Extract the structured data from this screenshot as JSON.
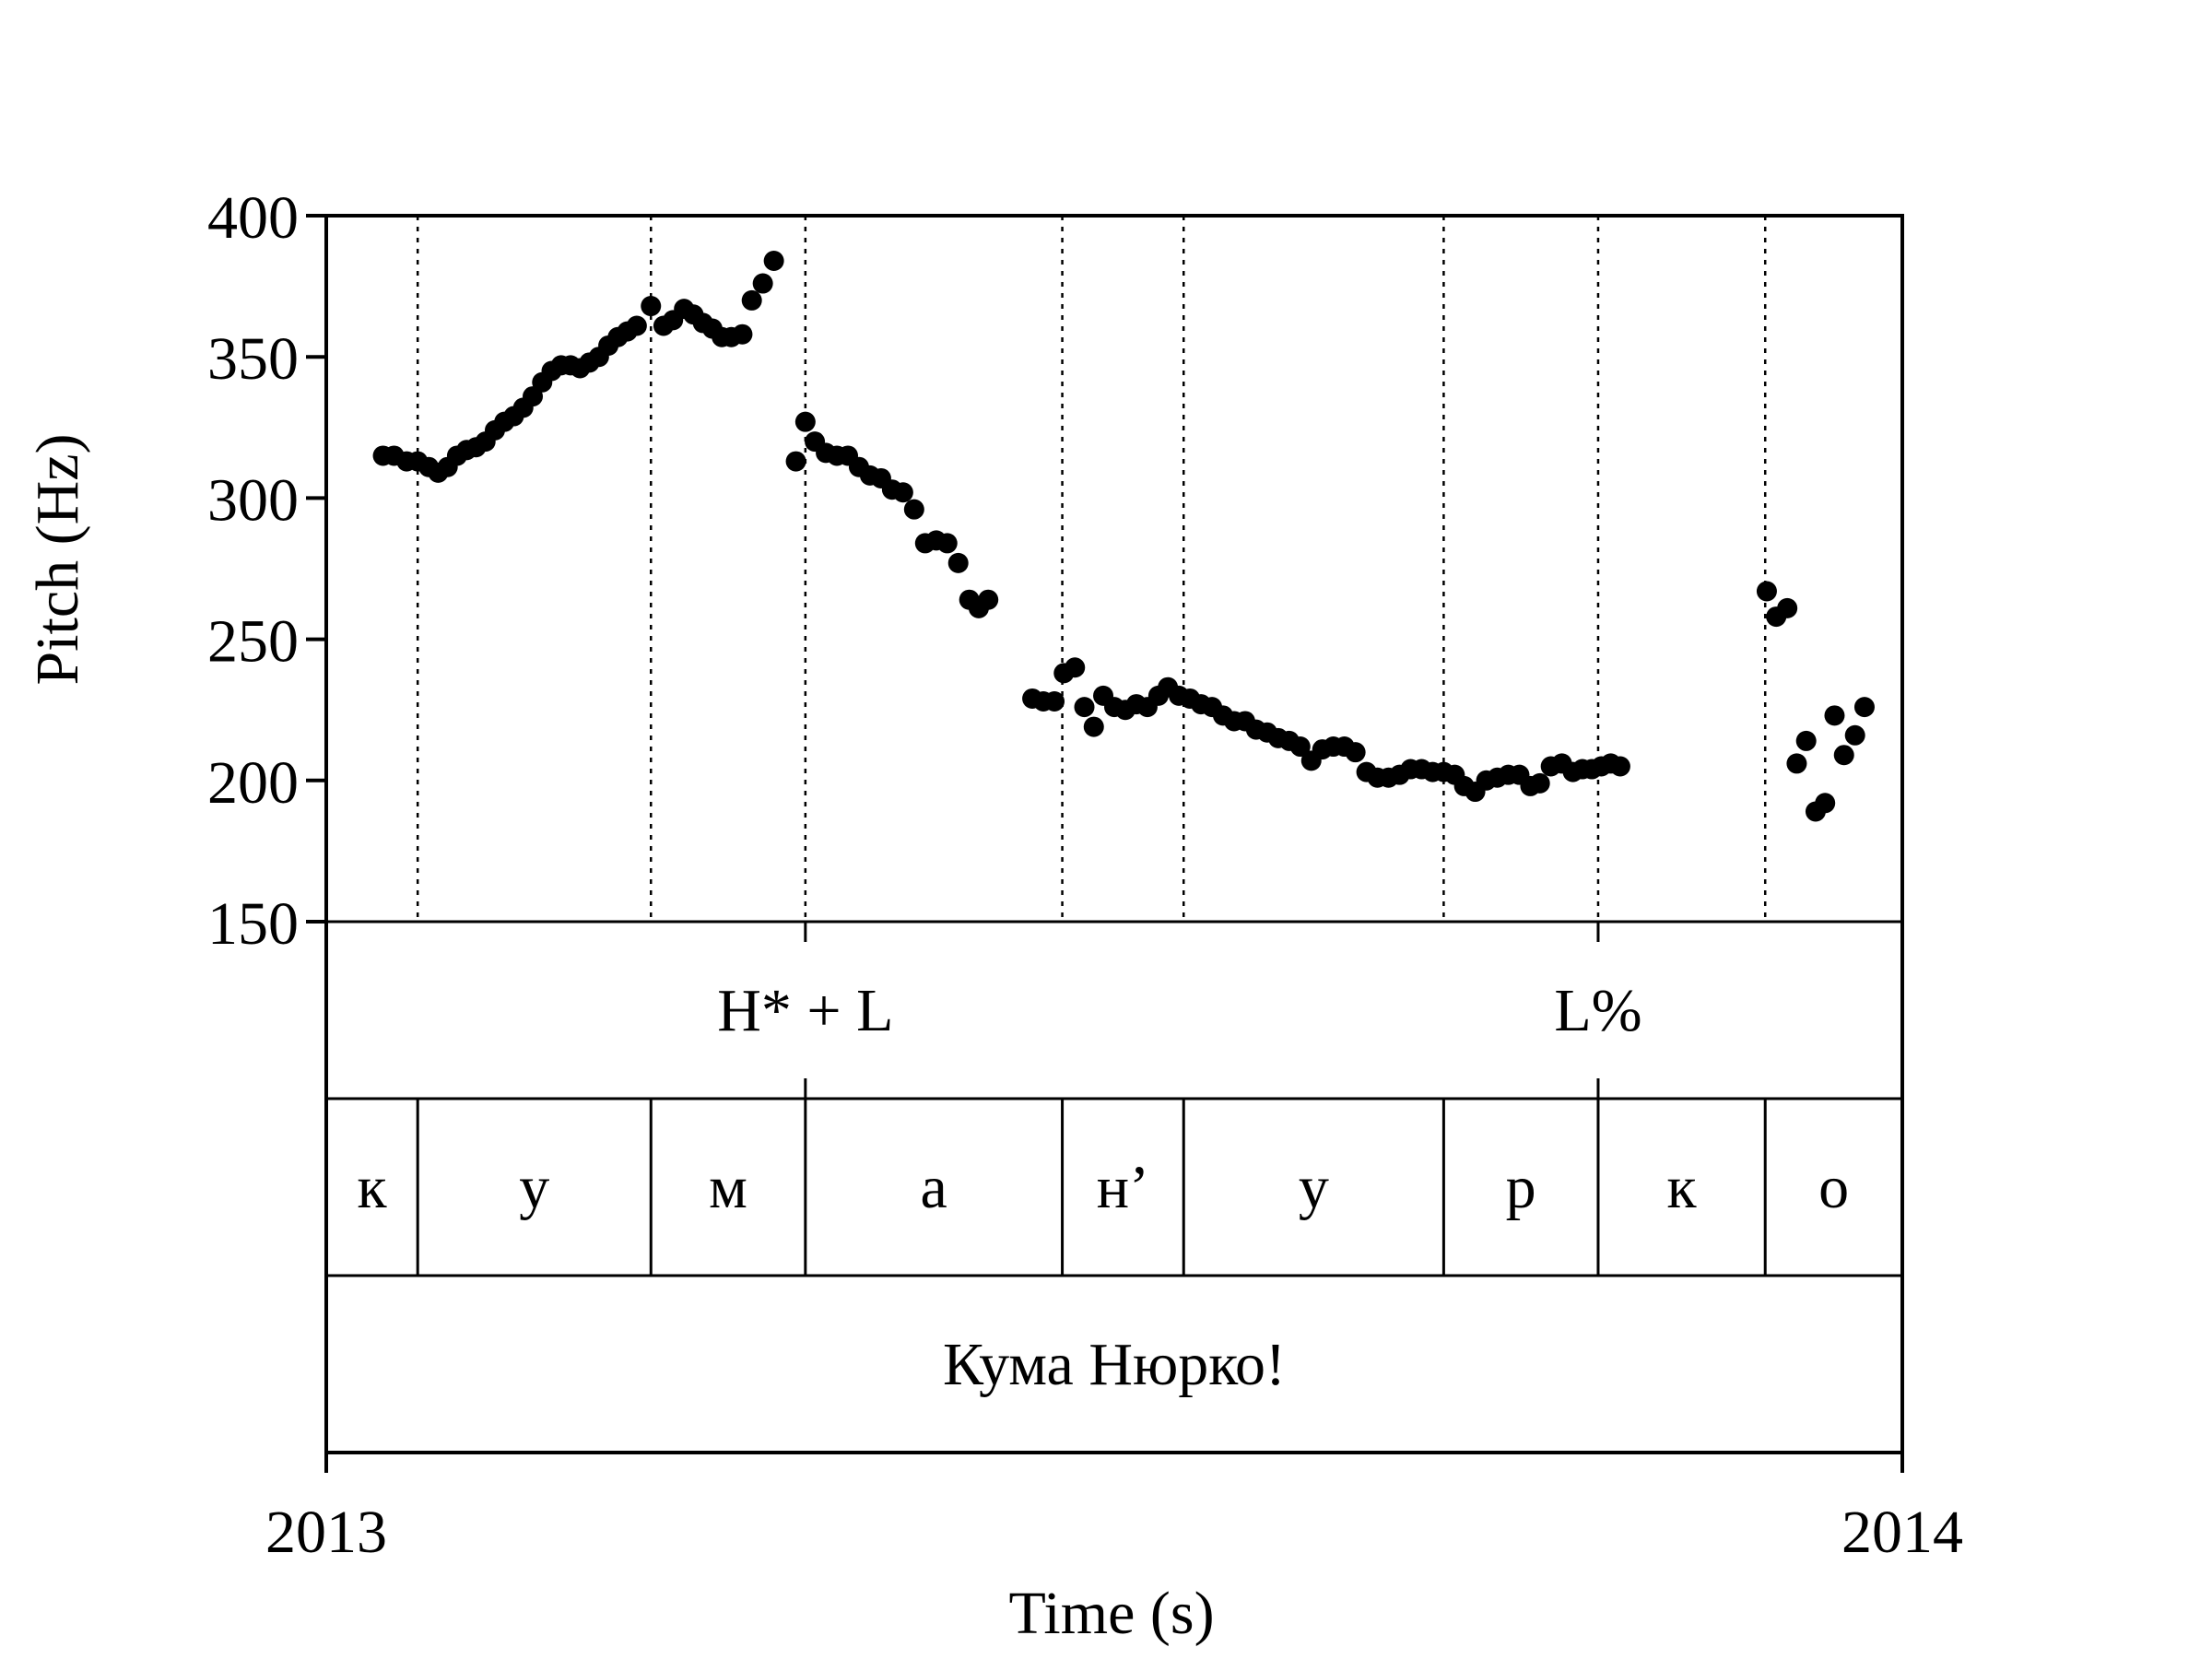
{
  "chart_data": {
    "type": "scatter",
    "xlabel": "Time (s)",
    "ylabel": "Pitch (Hz)",
    "ylim": [
      150,
      400
    ],
    "yticks": [
      "150",
      "200",
      "250",
      "300",
      "350",
      "400"
    ],
    "xlim": [
      0,
      1
    ],
    "xtick_labels": [
      "2013",
      "2014"
    ],
    "boundaries": [
      0.058,
      0.206,
      0.304,
      0.467,
      0.544,
      0.709,
      0.807,
      0.913
    ],
    "tones": [
      {
        "label": "H* + L",
        "t": 0.304
      },
      {
        "label": "L%",
        "t": 0.807
      }
    ],
    "segments": [
      "к",
      "у",
      "м",
      "а",
      "н’",
      "у",
      "р",
      "к",
      "о"
    ],
    "phrase": "Кума Нюрко!",
    "points": [
      [
        0.036,
        315
      ],
      [
        0.043,
        315
      ],
      [
        0.051,
        313
      ],
      [
        0.058,
        313
      ],
      [
        0.065,
        311
      ],
      [
        0.071,
        309
      ],
      [
        0.077,
        311
      ],
      [
        0.083,
        315
      ],
      [
        0.089,
        317
      ],
      [
        0.095,
        318
      ],
      [
        0.101,
        320
      ],
      [
        0.107,
        324
      ],
      [
        0.113,
        327
      ],
      [
        0.119,
        329
      ],
      [
        0.125,
        332
      ],
      [
        0.131,
        336
      ],
      [
        0.137,
        341
      ],
      [
        0.143,
        345
      ],
      [
        0.149,
        347
      ],
      [
        0.155,
        347
      ],
      [
        0.161,
        346
      ],
      [
        0.167,
        348
      ],
      [
        0.173,
        350
      ],
      [
        0.179,
        354
      ],
      [
        0.185,
        357
      ],
      [
        0.191,
        359
      ],
      [
        0.197,
        361
      ],
      [
        0.206,
        368
      ],
      [
        0.214,
        361
      ],
      [
        0.22,
        363
      ],
      [
        0.227,
        367
      ],
      [
        0.233,
        365
      ],
      [
        0.239,
        362
      ],
      [
        0.245,
        360
      ],
      [
        0.251,
        357
      ],
      [
        0.257,
        357
      ],
      [
        0.264,
        358
      ],
      [
        0.27,
        370
      ],
      [
        0.277,
        376
      ],
      [
        0.284,
        384
      ],
      [
        0.298,
        313
      ],
      [
        0.304,
        327
      ],
      [
        0.31,
        320
      ],
      [
        0.317,
        316
      ],
      [
        0.324,
        315
      ],
      [
        0.331,
        315
      ],
      [
        0.338,
        311
      ],
      [
        0.345,
        308
      ],
      [
        0.352,
        307
      ],
      [
        0.359,
        303
      ],
      [
        0.366,
        302
      ],
      [
        0.373,
        296
      ],
      [
        0.38,
        284
      ],
      [
        0.387,
        285
      ],
      [
        0.394,
        284
      ],
      [
        0.401,
        277
      ],
      [
        0.408,
        264
      ],
      [
        0.414,
        261
      ],
      [
        0.42,
        264
      ],
      [
        0.448,
        229
      ],
      [
        0.455,
        228
      ],
      [
        0.462,
        228
      ],
      [
        0.468,
        238
      ],
      [
        0.475,
        240
      ],
      [
        0.481,
        226
      ],
      [
        0.487,
        219
      ],
      [
        0.493,
        230
      ],
      [
        0.5,
        226
      ],
      [
        0.507,
        225
      ],
      [
        0.514,
        227
      ],
      [
        0.521,
        226
      ],
      [
        0.528,
        230
      ],
      [
        0.534,
        233
      ],
      [
        0.541,
        230
      ],
      [
        0.548,
        229
      ],
      [
        0.555,
        227
      ],
      [
        0.562,
        226
      ],
      [
        0.569,
        223
      ],
      [
        0.576,
        221
      ],
      [
        0.583,
        221
      ],
      [
        0.59,
        218
      ],
      [
        0.597,
        217
      ],
      [
        0.604,
        215
      ],
      [
        0.611,
        214
      ],
      [
        0.618,
        212
      ],
      [
        0.625,
        207
      ],
      [
        0.632,
        211
      ],
      [
        0.639,
        212
      ],
      [
        0.646,
        212
      ],
      [
        0.653,
        210
      ],
      [
        0.66,
        203
      ],
      [
        0.667,
        201
      ],
      [
        0.674,
        201
      ],
      [
        0.681,
        202
      ],
      [
        0.688,
        204
      ],
      [
        0.695,
        204
      ],
      [
        0.702,
        203
      ],
      [
        0.709,
        203
      ],
      [
        0.716,
        202
      ],
      [
        0.722,
        198
      ],
      [
        0.729,
        196
      ],
      [
        0.736,
        200
      ],
      [
        0.743,
        201
      ],
      [
        0.75,
        202
      ],
      [
        0.757,
        202
      ],
      [
        0.764,
        198
      ],
      [
        0.77,
        199
      ],
      [
        0.777,
        205
      ],
      [
        0.784,
        206
      ],
      [
        0.791,
        203
      ],
      [
        0.797,
        204
      ],
      [
        0.803,
        204
      ],
      [
        0.809,
        205
      ],
      [
        0.815,
        206
      ],
      [
        0.821,
        205
      ],
      [
        0.914,
        267
      ],
      [
        0.92,
        258
      ],
      [
        0.927,
        261
      ],
      [
        0.933,
        206
      ],
      [
        0.939,
        214
      ],
      [
        0.945,
        189
      ],
      [
        0.951,
        192
      ],
      [
        0.957,
        223
      ],
      [
        0.963,
        209
      ],
      [
        0.97,
        216
      ],
      [
        0.976,
        226
      ]
    ]
  }
}
